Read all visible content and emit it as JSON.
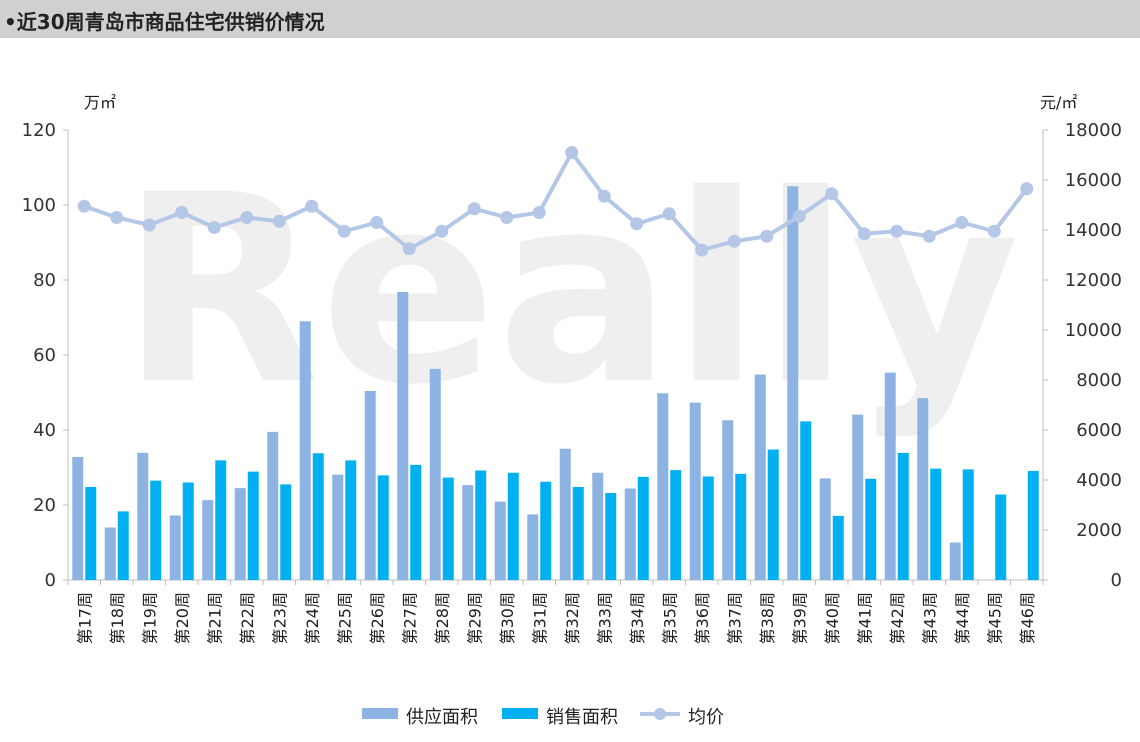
{
  "header": {
    "title": "•近30周青岛市商品住宅供销价情况"
  },
  "chart_data": {
    "type": "bar",
    "title": "•近30周青岛市商品住宅供销价情况",
    "left_unit": "万㎡",
    "right_unit": "元/㎡",
    "ylim_left": [
      0,
      120
    ],
    "ylim_right": [
      0,
      18000
    ],
    "left_ticks": [
      "0",
      "20",
      "40",
      "60",
      "80",
      "100",
      "120"
    ],
    "right_ticks": [
      "0",
      "2000",
      "4000",
      "6000",
      "8000",
      "10000",
      "12000",
      "14000",
      "16000",
      "18000"
    ],
    "categories": [
      "第17周",
      "第18周",
      "第19周",
      "第20周",
      "第21周",
      "第22周",
      "第23周",
      "第24周",
      "第25周",
      "第26周",
      "第27周",
      "第28周",
      "第29周",
      "第30周",
      "第31周",
      "第32周",
      "第33周",
      "第34周",
      "第35周",
      "第36周",
      "第37周",
      "第38周",
      "第39周",
      "第40周",
      "第41周",
      "第42周",
      "第43周",
      "第44周",
      "第45周",
      "第46周"
    ],
    "series": [
      {
        "name": "供应面积",
        "kind": "bar",
        "axis": "left",
        "color": "#8db3e2",
        "values": [
          32.8,
          14,
          33.9,
          17.2,
          21.3,
          24.5,
          39.5,
          69,
          28.1,
          50.4,
          76.8,
          56.3,
          25.3,
          20.9,
          17.5,
          35,
          28.6,
          24.4,
          49.8,
          47.3,
          42.6,
          54.8,
          105,
          27.1,
          44.1,
          55.3,
          48.5,
          10,
          0,
          0
        ]
      },
      {
        "name": "销售面积",
        "kind": "bar",
        "axis": "left",
        "color": "#00b0f0",
        "values": [
          24.8,
          18.3,
          26.5,
          26,
          31.9,
          28.9,
          25.5,
          33.8,
          31.9,
          27.9,
          30.7,
          27.3,
          29.2,
          28.6,
          26.2,
          24.8,
          23.2,
          27.5,
          29.3,
          27.6,
          28.3,
          34.8,
          42.3,
          17.1,
          27,
          33.9,
          29.7,
          29.5,
          22.8,
          29.1
        ]
      },
      {
        "name": "均价",
        "kind": "line",
        "axis": "right",
        "color": "#b4c7e7",
        "values": [
          14950,
          14500,
          14200,
          14700,
          14100,
          14500,
          14350,
          14950,
          13950,
          14300,
          13250,
          13950,
          14850,
          14500,
          14700,
          17100,
          15350,
          14250,
          14650,
          13200,
          13550,
          13750,
          14550,
          15450,
          13850,
          13950,
          13750,
          14300,
          13950,
          15650
        ]
      }
    ],
    "grid": false,
    "legend_position": "bottom"
  }
}
